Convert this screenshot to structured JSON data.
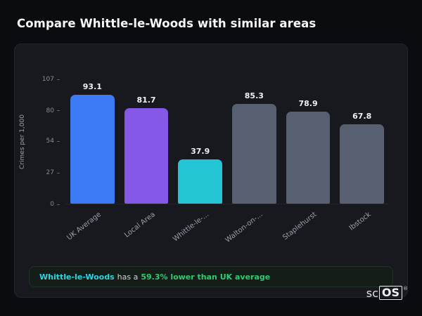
{
  "page": {
    "title": "Compare Whittle-le-Woods with similar areas"
  },
  "chart_data": {
    "type": "bar",
    "title": "",
    "ylabel": "Crimes per 1,000",
    "ylim": [
      0,
      107
    ],
    "yticks": [
      107,
      80,
      54,
      27,
      0
    ],
    "categories": [
      "UK Average",
      "Local Area",
      "Whittle-le-...",
      "Walton-on-...",
      "Staplehurst",
      "Ibstock"
    ],
    "values": [
      93.1,
      81.7,
      37.9,
      85.3,
      78.9,
      67.8
    ],
    "bar_colors": [
      "#3d7bf5",
      "#8558e8",
      "#23c4d4",
      "#576070",
      "#576070",
      "#576070"
    ],
    "grid": false,
    "legend": false
  },
  "footer": {
    "area_name": "Whittle-le-Woods",
    "middle_text": "has a",
    "highlight_text": "59.3% lower than UK average",
    "area_color": "#2dd4e0",
    "highlight_color": "#2ecc71"
  },
  "logo": {
    "prefix": "sc",
    "suffix": "OS",
    "registered": "®"
  }
}
